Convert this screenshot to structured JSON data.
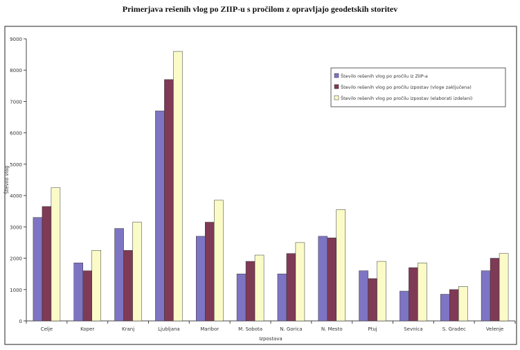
{
  "chart_data": {
    "type": "bar",
    "title": "Primerjava rešenih vlog po ZIIP-u s pročilom z opravljajo geodetskih storitev",
    "xlabel": "Izpostava",
    "ylabel": "Število vlog",
    "ylim": [
      0,
      9000
    ],
    "yticks": [
      0,
      1000,
      2000,
      3000,
      4000,
      5000,
      6000,
      7000,
      8000,
      9000
    ],
    "categories": [
      "Celje",
      "Koper",
      "Kranj",
      "Ljubljana",
      "Maribor",
      "M. Sobota",
      "N. Gorica",
      "N. Mesto",
      "Ptuj",
      "Sevnica",
      "S. Gradec",
      "Velenje"
    ],
    "series": [
      {
        "name": "Število rešenih vlog po pročilu iz ZIIP-a",
        "color": "#7e74c4",
        "values": [
          3300,
          1850,
          2950,
          6700,
          2700,
          1500,
          1500,
          2700,
          1600,
          950,
          850,
          1600
        ]
      },
      {
        "name": "Število rešenih vlog po pročilu izpostav (vloge zaključena)",
        "color": "#7f3a56",
        "values": [
          3650,
          1600,
          2250,
          7700,
          3150,
          1900,
          2150,
          2650,
          1350,
          1700,
          1000,
          2000
        ]
      },
      {
        "name": "Število rešenih vlog po pročilu izpostav (elaborati izdelani)",
        "color": "#fbfbc8",
        "values": [
          4250,
          2250,
          3150,
          8600,
          3850,
          2100,
          2500,
          3550,
          1900,
          1850,
          1100,
          2150
        ]
      }
    ],
    "legend_position": "top-right",
    "grid": false
  }
}
